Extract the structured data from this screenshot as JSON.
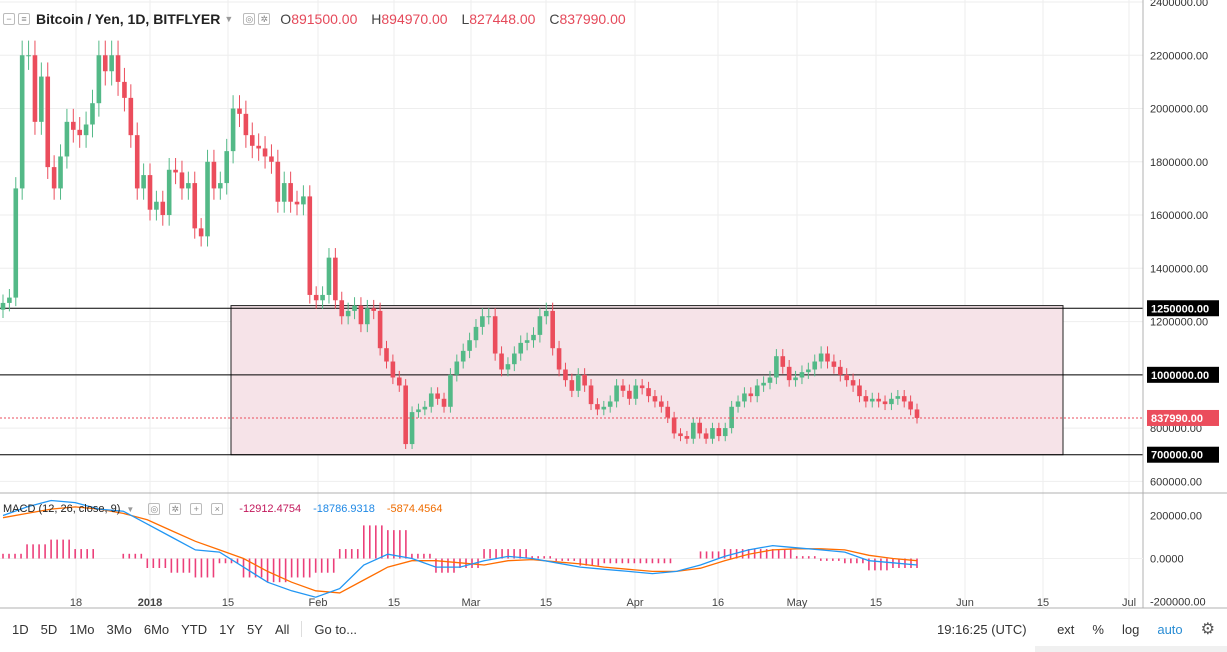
{
  "header": {
    "symbol": "Bitcoin / Yen, 1D, BITFLYER",
    "open_label": "O",
    "open": "891500.00",
    "high_label": "H",
    "high": "894970.00",
    "low_label": "L",
    "low": "827448.00",
    "close_label": "C",
    "close": "837990.00"
  },
  "macd_header": {
    "title": "MACD (12, 26, close, 9)",
    "hist": "-12912.4754",
    "macd": "-18786.9318",
    "signal": "-5874.4564"
  },
  "toolbar": {
    "ranges": [
      "1D",
      "5D",
      "1Mo",
      "3Mo",
      "6Mo",
      "YTD",
      "1Y",
      "5Y",
      "All"
    ],
    "goto": "Go to...",
    "time": "19:16:25 (UTC)",
    "ext": "ext",
    "pct": "%",
    "log": "log",
    "auto": "auto",
    "settings_icon": "gear-icon"
  },
  "colors": {
    "up": "#53b987",
    "down": "#eb4d5c",
    "macd_line": "#2196f3",
    "signal_line": "#ff6d00",
    "hist": "#e91e63",
    "zone_fill": "#f6e3e8"
  },
  "chart_data": [
    {
      "type": "candlestick",
      "title": "Bitcoin / Yen, 1D, BITFLYER",
      "ylim": [
        560000,
        2400000
      ],
      "y_ticks": [
        600000,
        800000,
        1000000,
        1200000,
        1400000,
        1600000,
        1800000,
        2000000,
        2200000,
        2400000
      ],
      "x_ticks": [
        "18",
        "2018",
        "15",
        "Feb",
        "15",
        "Mar",
        "15",
        "Apr",
        "16",
        "May",
        "15",
        "Jun",
        "15",
        "Jul"
      ],
      "price_labels": [
        "1250000.00",
        "1000000.00",
        "837990.00",
        "700000.00"
      ],
      "horizontal_levels": [
        1250000,
        1000000,
        700000
      ],
      "last_price": 837990,
      "closes": [
        1270000,
        1290000,
        1700000,
        2200000,
        2200000,
        1950000,
        2120000,
        1780000,
        1700000,
        1820000,
        1950000,
        1920000,
        1900000,
        1940000,
        2020000,
        2200000,
        2140000,
        2200000,
        2100000,
        2040000,
        1900000,
        1700000,
        1750000,
        1620000,
        1650000,
        1600000,
        1770000,
        1760000,
        1700000,
        1720000,
        1550000,
        1520000,
        1800000,
        1700000,
        1720000,
        1840000,
        2000000,
        1980000,
        1900000,
        1860000,
        1850000,
        1820000,
        1800000,
        1650000,
        1720000,
        1650000,
        1640000,
        1670000,
        1300000,
        1280000,
        1300000,
        1440000,
        1280000,
        1220000,
        1240000,
        1260000,
        1190000,
        1250000,
        1240000,
        1100000,
        1050000,
        990000,
        960000,
        740000,
        860000,
        870000,
        880000,
        930000,
        910000,
        880000,
        1000000,
        1050000,
        1090000,
        1130000,
        1180000,
        1220000,
        1220000,
        1080000,
        1020000,
        1040000,
        1080000,
        1120000,
        1130000,
        1150000,
        1220000,
        1240000,
        1100000,
        1020000,
        980000,
        940000,
        1000000,
        960000,
        890000,
        870000,
        880000,
        900000,
        960000,
        940000,
        910000,
        960000,
        950000,
        920000,
        900000,
        880000,
        840000,
        780000,
        770000,
        760000,
        820000,
        780000,
        760000,
        800000,
        770000,
        800000,
        880000,
        900000,
        930000,
        920000,
        960000,
        970000,
        990000,
        1070000,
        1030000,
        980000,
        990000,
        1010000,
        1020000,
        1050000,
        1080000,
        1050000,
        1030000,
        1000000,
        980000,
        960000,
        920000,
        900000,
        910000,
        900000,
        890000,
        910000,
        920000,
        900000,
        870000,
        838000
      ]
    },
    {
      "type": "line",
      "title": "MACD (12, 26, close, 9)",
      "ylim": [
        -230000,
        300000
      ],
      "y_ticks": [
        -200000,
        0,
        200000
      ],
      "y_tick_labels": [
        "-200000.00",
        "0.0000",
        "200000.00"
      ],
      "series": [
        {
          "name": "MACD",
          "values": [
            200000,
            240000,
            270000,
            260000,
            230000,
            220000,
            160000,
            100000,
            40000,
            30000,
            -40000,
            -110000,
            -150000,
            -180000,
            -140000,
            -30000,
            20000,
            0,
            -40000,
            -40000,
            -10000,
            10000,
            0,
            -20000,
            -40000,
            -50000,
            -60000,
            -70000,
            -60000,
            -30000,
            10000,
            40000,
            60000,
            50000,
            40000,
            30000,
            -10000,
            -20000,
            -30000
          ]
        },
        {
          "name": "Signal",
          "values": [
            190000,
            210000,
            230000,
            240000,
            230000,
            210000,
            180000,
            130000,
            80000,
            40000,
            0,
            -60000,
            -110000,
            -150000,
            -160000,
            -100000,
            -40000,
            -10000,
            -10000,
            -20000,
            -30000,
            -10000,
            -5000,
            -15000,
            -25000,
            -40000,
            -50000,
            -60000,
            -60000,
            -45000,
            -10000,
            20000,
            40000,
            45000,
            45000,
            40000,
            15000,
            0,
            -10000
          ]
        }
      ]
    }
  ]
}
